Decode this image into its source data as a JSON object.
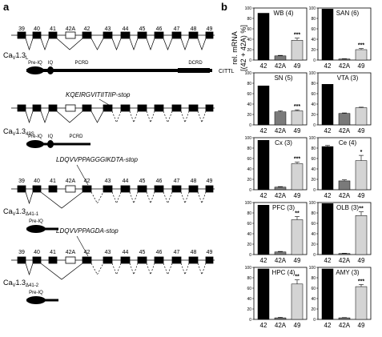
{
  "panel_a": {
    "label": "a",
    "isoforms": [
      {
        "name_main": "Ca",
        "name_sub": "V",
        "name_rest": "1.3",
        "name_suffix": "L",
        "exon_labels": [
          "39",
          "40",
          "41",
          "42A",
          "42",
          "43",
          "44",
          "45",
          "46",
          "47",
          "48",
          "49"
        ],
        "insert_text": "",
        "protein_labels": [
          "Pre-IQ",
          "IQ",
          "PCRD",
          "DCRD"
        ],
        "tail_label": "CITTL"
      },
      {
        "name_main": "Ca",
        "name_sub": "V",
        "name_rest": "1.3",
        "name_suffix": "43S",
        "exon_labels": [],
        "insert_text": "KQEIRGVITIITIIP-stop",
        "protein_labels": [
          "Pre-IQ",
          "IQ",
          "PCRD"
        ]
      },
      {
        "name_main": "Ca",
        "name_sub": "V",
        "name_rest": "1.3",
        "name_suffix": "Δ41-1",
        "exon_labels": [
          "39",
          "40",
          "41",
          "42A",
          "42",
          "43",
          "44",
          "45",
          "46",
          "47",
          "48",
          "49"
        ],
        "insert_text": "LDQVVPPAGGGIKDTA-stop",
        "protein_labels": [
          "Pre-IQ"
        ]
      },
      {
        "name_main": "Ca",
        "name_sub": "V",
        "name_rest": "1.3",
        "name_suffix": "Δ41-2",
        "exon_labels": [
          "39",
          "40",
          "41",
          "42A",
          "42",
          "43",
          "44",
          "45",
          "46",
          "47",
          "48",
          "49"
        ],
        "insert_text": "LDQVVPPAGDA-stop",
        "protein_labels": [
          "Pre-IQ"
        ]
      }
    ]
  },
  "panel_b": {
    "label": "b",
    "ylabel_line1": "rel. mRNA",
    "ylabel_line2": "[(42 + 42A) %]",
    "categories": [
      "42",
      "42A",
      "49"
    ],
    "bar_colors": [
      "#000000",
      "#7a7a7a",
      "#d4d4d4"
    ]
  },
  "chart_data": [
    {
      "type": "bar",
      "title": "WB (4)",
      "categories": [
        "42",
        "42A",
        "49"
      ],
      "values": [
        90,
        8,
        38
      ],
      "errors": [
        0,
        1,
        4
      ],
      "significance": "***",
      "ylim": [
        0,
        100
      ],
      "yticks": [
        "0",
        "20",
        "40",
        "60",
        "80",
        "100"
      ]
    },
    {
      "type": "bar",
      "title": "SAN (6)",
      "categories": [
        "42",
        "42A",
        "49"
      ],
      "values": [
        98,
        2,
        20
      ],
      "errors": [
        0,
        0.5,
        2
      ],
      "significance": "***",
      "ylim": [
        0,
        100
      ],
      "yticks": [
        "0",
        "20",
        "40",
        "60",
        "80",
        "100"
      ]
    },
    {
      "type": "bar",
      "title": "SN (5)",
      "categories": [
        "42",
        "42A",
        "49"
      ],
      "values": [
        75,
        25,
        27
      ],
      "errors": [
        0,
        2,
        2
      ],
      "significance": "***",
      "ylim": [
        0,
        100
      ],
      "yticks": [
        "0",
        "20",
        "40",
        "60",
        "80",
        "100"
      ]
    },
    {
      "type": "bar",
      "title": "VTA (3)",
      "categories": [
        "42",
        "42A",
        "49"
      ],
      "values": [
        78,
        22,
        33
      ],
      "errors": [
        0,
        1,
        1
      ],
      "significance": "",
      "ylim": [
        0,
        100
      ],
      "yticks": [
        "0",
        "20",
        "40",
        "60",
        "80",
        "100"
      ]
    },
    {
      "type": "bar",
      "title": "Cx (3)",
      "categories": [
        "42",
        "42A",
        "49"
      ],
      "values": [
        95,
        5,
        50
      ],
      "errors": [
        0,
        1,
        3
      ],
      "significance": "***",
      "ylim": [
        0,
        100
      ],
      "yticks": [
        "0",
        "20",
        "40",
        "60",
        "80",
        "100"
      ]
    },
    {
      "type": "bar",
      "title": "Ce (4)",
      "categories": [
        "42",
        "42A",
        "49"
      ],
      "values": [
        83,
        17,
        56
      ],
      "errors": [
        2,
        2,
        10
      ],
      "significance": "*",
      "ylim": [
        0,
        100
      ],
      "yticks": [
        "0",
        "20",
        "40",
        "60",
        "80",
        "100"
      ]
    },
    {
      "type": "bar",
      "title": "PFC (3)",
      "categories": [
        "42",
        "42A",
        "49"
      ],
      "values": [
        95,
        5,
        67
      ],
      "errors": [
        0,
        1,
        6
      ],
      "significance": "**",
      "ylim": [
        0,
        100
      ],
      "yticks": [
        "0",
        "20",
        "40",
        "60",
        "80",
        "100"
      ]
    },
    {
      "type": "bar",
      "title": "OLB (3)",
      "categories": [
        "42",
        "42A",
        "49"
      ],
      "values": [
        98,
        2,
        75
      ],
      "errors": [
        0,
        0.5,
        7
      ],
      "significance": "**",
      "ylim": [
        0,
        100
      ],
      "yticks": [
        "0",
        "20",
        "40",
        "60",
        "80",
        "100"
      ]
    },
    {
      "type": "bar",
      "title": "HPC (4)",
      "categories": [
        "42",
        "42A",
        "49"
      ],
      "values": [
        97,
        3,
        68
      ],
      "errors": [
        0,
        1,
        8
      ],
      "significance": "**",
      "ylim": [
        0,
        100
      ],
      "yticks": [
        "0",
        "20",
        "40",
        "60",
        "80",
        "100"
      ]
    },
    {
      "type": "bar",
      "title": "AMY (3)",
      "categories": [
        "42",
        "42A",
        "49"
      ],
      "values": [
        97,
        3,
        63
      ],
      "errors": [
        0,
        0.5,
        4
      ],
      "significance": "***",
      "ylim": [
        0,
        100
      ],
      "yticks": [
        "0",
        "20",
        "40",
        "60",
        "80",
        "100"
      ]
    }
  ]
}
